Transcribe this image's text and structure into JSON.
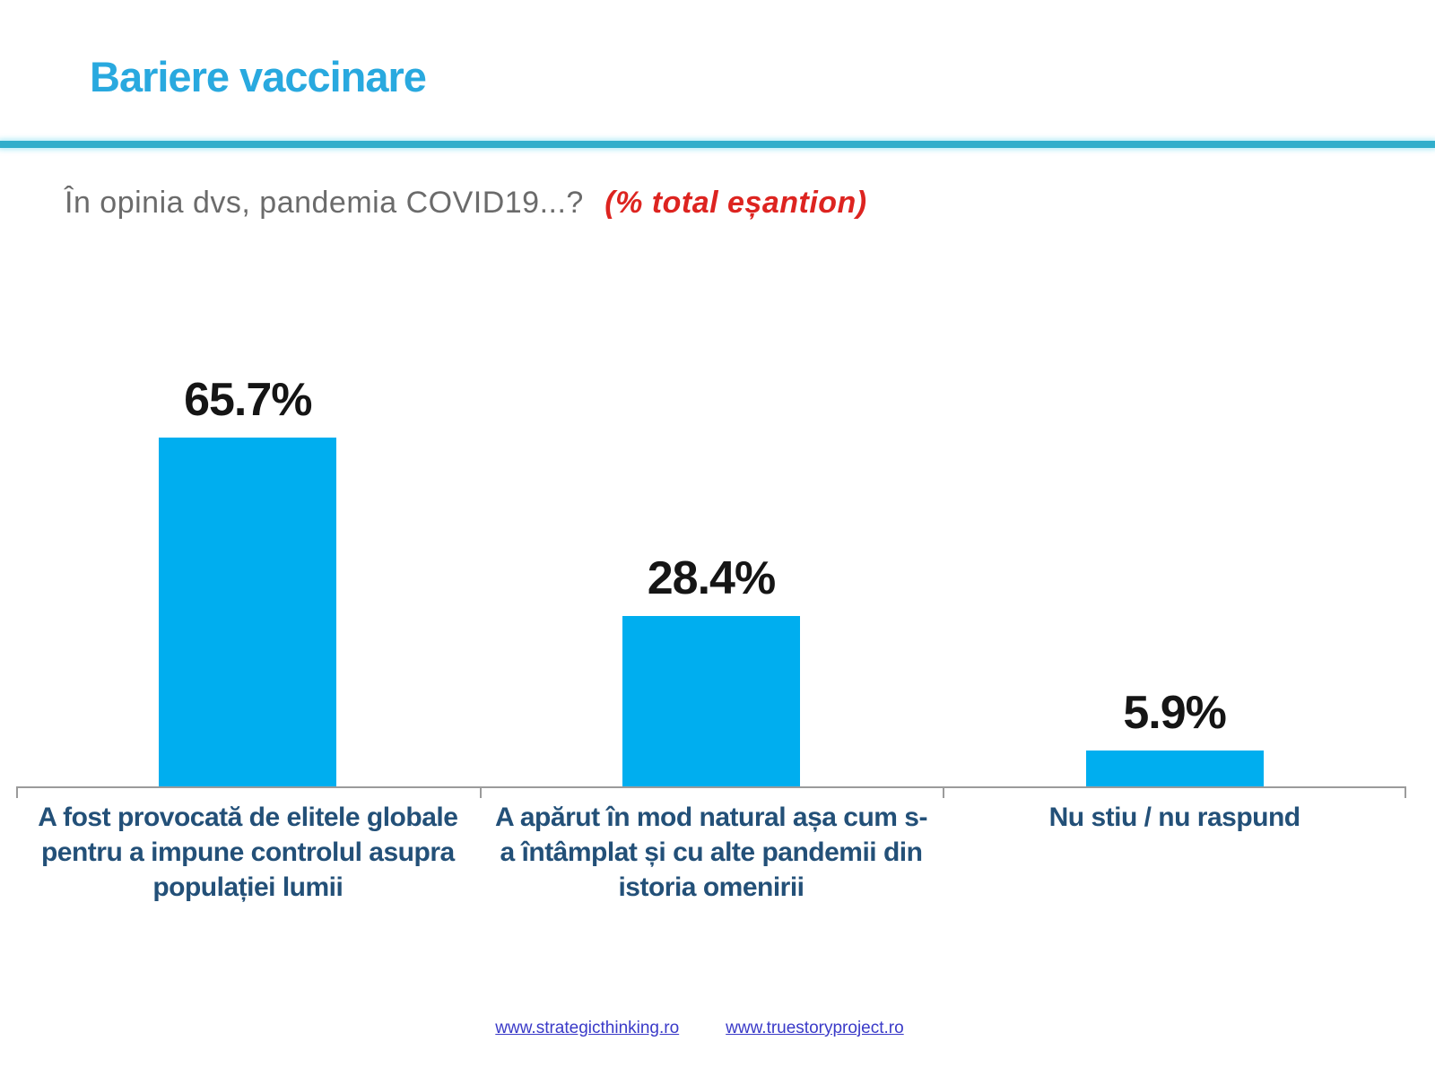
{
  "page": {
    "title": "Bariere vaccinare",
    "subtitle": "În opinia dvs, pandemia COVID19...?",
    "subtitle_note": "(% total eșantion)"
  },
  "colors": {
    "title_accent": "#29A9DF",
    "divider": "#31AECB",
    "bar": "#00AEEF",
    "subtitle_gray": "#6b6b6b",
    "note_red": "#DD2420",
    "category_label_navy": "#235078",
    "axis_gray": "#9b9b9b",
    "link_blue": "#3A3AC8",
    "value_label_black": "#151515"
  },
  "chart_data": {
    "type": "bar",
    "title": "În opinia dvs, pandemia COVID19...? (% total eșantion)",
    "categories": [
      "A fost provocată de elitele globale pentru a impune controlul asupra populației lumii",
      "A apărut în mod natural așa cum s-a întâmplat și cu alte pandemii din istoria omenirii",
      "Nu stiu / nu raspund"
    ],
    "values": [
      65.7,
      28.4,
      5.9
    ],
    "value_labels": [
      "65.7%",
      "28.4%",
      "5.9%"
    ],
    "xlabel": "",
    "ylabel": "",
    "ylim": [
      0,
      68
    ],
    "grid": false,
    "legend": false,
    "bar_color": "#00AEEF"
  },
  "footer": {
    "links": [
      "www.strategicthinking.ro",
      "www.truestoryproject.ro"
    ]
  }
}
